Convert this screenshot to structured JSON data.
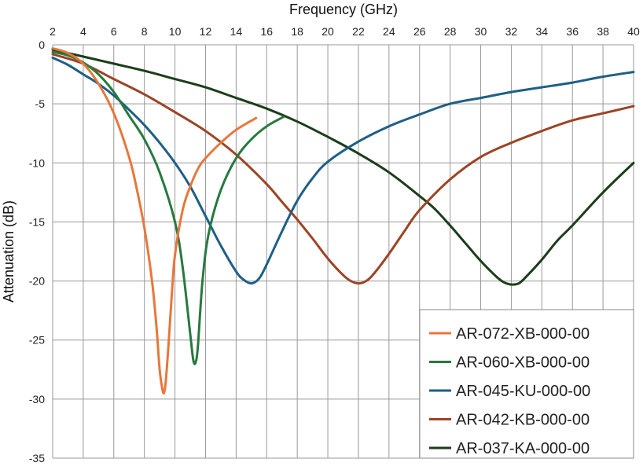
{
  "chart_data": {
    "type": "line",
    "title": "",
    "xlabel": "Frequency (GHz)",
    "ylabel": "Attenuation (dB)",
    "xlim": [
      2,
      40
    ],
    "ylim": [
      -35,
      0
    ],
    "x_ticks": [
      2,
      4,
      6,
      8,
      10,
      12,
      14,
      16,
      18,
      20,
      22,
      24,
      26,
      28,
      30,
      32,
      34,
      36,
      38,
      40
    ],
    "x_tick_labels": [
      "2",
      "4",
      "6",
      "8",
      "10",
      "12",
      "14",
      "16",
      "18",
      "20",
      "22",
      "24",
      "26",
      "28",
      "30",
      "32",
      "34",
      "36",
      "38",
      "40"
    ],
    "y_ticks": [
      0,
      -5,
      -10,
      -15,
      -20,
      -25,
      -30,
      -35
    ],
    "y_tick_labels": [
      "0",
      "-5",
      "-10",
      "-15",
      "-20",
      "-25",
      "-30",
      "-35"
    ],
    "x_axis_position": "top",
    "grid": true,
    "legend_position": "bottom-right",
    "series": [
      {
        "name": "AR-072-XB-000-00",
        "color": "#e8773a",
        "x": [
          2,
          3,
          4,
          5,
          6,
          7,
          7.5,
          8,
          8.5,
          8.8,
          9.0,
          9.2,
          9.3,
          9.4,
          9.6,
          9.8,
          10.0,
          10.5,
          11,
          11.5,
          12,
          13,
          14,
          15.3
        ],
        "y": [
          -0.3,
          -0.7,
          -1.6,
          -3.3,
          -5.8,
          -9.5,
          -12.2,
          -15.5,
          -20.0,
          -24.0,
          -27.5,
          -29.3,
          -29.4,
          -28.5,
          -25.0,
          -21.0,
          -17.8,
          -14.0,
          -12.0,
          -10.5,
          -9.6,
          -8.3,
          -7.2,
          -6.2
        ]
      },
      {
        "name": "AR-060-XB-000-00",
        "color": "#267a3e",
        "x": [
          2,
          3,
          4,
          5,
          6,
          7,
          8,
          9,
          10,
          10.5,
          11.0,
          11.2,
          11.35,
          11.5,
          11.8,
          12.2,
          13,
          14,
          15,
          16,
          17.1
        ],
        "y": [
          -0.6,
          -0.9,
          -1.5,
          -2.5,
          -4.0,
          -6.0,
          -8.0,
          -10.8,
          -15.0,
          -18.8,
          -24.5,
          -26.7,
          -26.9,
          -25.5,
          -20.0,
          -16.0,
          -12.3,
          -9.6,
          -8.0,
          -6.9,
          -6.1
        ]
      },
      {
        "name": "AR-045-KU-000-00",
        "color": "#1d5f86",
        "x": [
          2,
          3,
          4,
          5,
          6,
          7,
          8,
          9,
          10,
          11,
          12,
          13,
          14,
          14.5,
          15,
          15.5,
          16,
          17,
          18,
          19,
          20,
          22,
          24,
          26,
          28,
          30,
          32,
          34,
          36,
          38,
          40
        ],
        "y": [
          -1.1,
          -1.7,
          -2.5,
          -3.3,
          -4.3,
          -5.5,
          -6.8,
          -8.3,
          -10.0,
          -12.0,
          -14.5,
          -17.0,
          -19.2,
          -19.9,
          -20.2,
          -19.8,
          -18.6,
          -15.8,
          -13.2,
          -11.3,
          -9.9,
          -8.2,
          -6.9,
          -5.9,
          -5.0,
          -4.5,
          -4.0,
          -3.6,
          -3.2,
          -2.7,
          -2.3
        ]
      },
      {
        "name": "AR-042-KB-000-00",
        "color": "#9c4425",
        "x": [
          2,
          4,
          6,
          8,
          10,
          12,
          14,
          16,
          17,
          18,
          19,
          20,
          21,
          21.5,
          22,
          22.5,
          23,
          24,
          25,
          26,
          28,
          30,
          32,
          34,
          36,
          38,
          40
        ],
        "y": [
          -0.8,
          -1.6,
          -2.9,
          -4.2,
          -5.7,
          -7.3,
          -9.3,
          -11.8,
          -13.3,
          -14.8,
          -16.4,
          -18.1,
          -19.5,
          -20.0,
          -20.2,
          -20.0,
          -19.4,
          -17.7,
          -15.8,
          -14.0,
          -11.4,
          -9.5,
          -8.3,
          -7.3,
          -6.4,
          -5.8,
          -5.2
        ]
      },
      {
        "name": "AR-037-KA-000-00",
        "color": "#1c3d1b",
        "x": [
          2,
          4,
          6,
          8,
          10,
          12,
          14,
          16,
          18,
          20,
          22,
          24,
          26,
          27,
          28,
          29,
          30,
          31,
          31.5,
          32,
          32.5,
          33,
          34,
          35,
          36,
          38,
          40
        ],
        "y": [
          -0.4,
          -1.0,
          -1.6,
          -2.2,
          -2.9,
          -3.6,
          -4.5,
          -5.4,
          -6.5,
          -7.8,
          -9.2,
          -10.8,
          -12.8,
          -13.9,
          -15.3,
          -16.8,
          -18.3,
          -19.6,
          -20.1,
          -20.3,
          -20.2,
          -19.6,
          -18.2,
          -16.6,
          -15.3,
          -12.5,
          -10.0
        ]
      }
    ]
  }
}
